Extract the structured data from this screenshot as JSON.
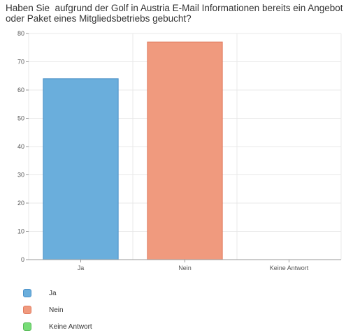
{
  "chart_data": {
    "type": "bar",
    "title": "Haben Sie  aufgrund der Golf in Austria E-Mail Informationen bereits ein Angebot oder Paket eines Mitgliedsbetriebs gebucht?",
    "categories": [
      "Ja",
      "Nein",
      "Keine Antwort"
    ],
    "values": [
      64,
      77,
      0
    ],
    "colors": [
      "#6aaedc",
      "#f09a7e",
      "#77dd77"
    ],
    "border_colors": [
      "#4a90c8",
      "#e07a5e",
      "#55bb55"
    ],
    "ylim": [
      0,
      80
    ],
    "yticks": [
      0,
      10,
      20,
      30,
      40,
      50,
      60,
      70,
      80
    ],
    "grid": true,
    "legend_position": "bottom-left"
  }
}
